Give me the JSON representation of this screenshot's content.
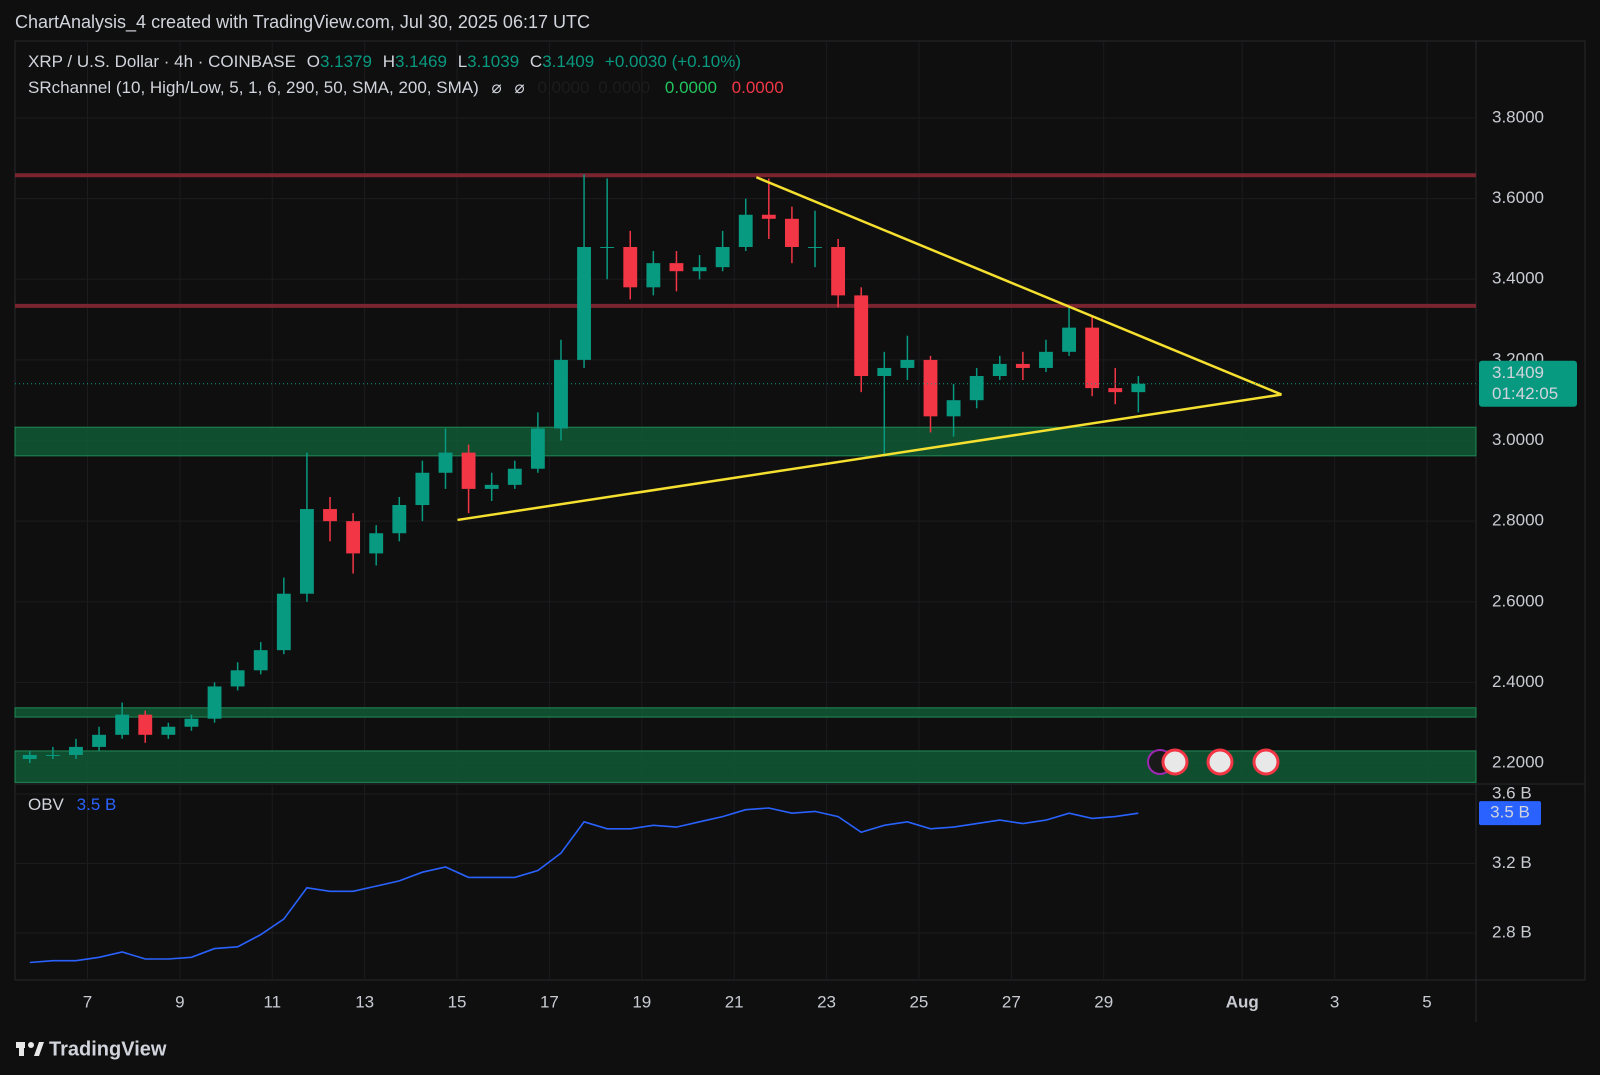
{
  "header": {
    "credit": "ChartAnalysis_4 created with TradingView.com, Jul 30, 2025 06:17 UTC",
    "brand": "TradingView"
  },
  "chart_data": {
    "type": "candlestick",
    "symbol": "XRP / U.S. Dollar · 4h · COINBASE",
    "ohlc": [
      {
        "label": "O",
        "value": "3.1379"
      },
      {
        "label": "H",
        "value": "3.1469"
      },
      {
        "label": "L",
        "value": "3.1039"
      },
      {
        "label": "C",
        "value": "3.1409"
      }
    ],
    "change": "+0.0030 (+0.10%)",
    "indicator": {
      "name": "SRchannel (10, High/Low, 5, 1, 6, 290, 50, SMA, 200, SMA)",
      "symbols": [
        "⌀",
        "⌀"
      ],
      "values": [
        "0.0000",
        "0.0000",
        "0.0000",
        "0.0000"
      ],
      "colors": [
        "#1c1c1c",
        "#1c1c1c",
        "#22c55e",
        "#f23645"
      ]
    },
    "up_color": "#089981",
    "down_color": "#f23645",
    "x": [
      5.75,
      6.25,
      6.75,
      7.25,
      7.75,
      8.25,
      8.75,
      9.25,
      9.75,
      10.25,
      10.75,
      11.25,
      11.75,
      12.25,
      12.75,
      13.25,
      13.75,
      14.25,
      14.75,
      15.25,
      15.75,
      16.25,
      16.75,
      17.25,
      17.75,
      18.25,
      18.75,
      19.25,
      19.75,
      20.25,
      20.75,
      21.25,
      21.75,
      22.25,
      22.75,
      23.25,
      23.75,
      24.25,
      24.75,
      25.25,
      25.75,
      26.25,
      26.75,
      27.25,
      27.75,
      28.25,
      28.75,
      29.25,
      29.75
    ],
    "open": [
      2.21,
      2.22,
      2.22,
      2.24,
      2.27,
      2.32,
      2.27,
      2.29,
      2.31,
      2.39,
      2.43,
      2.48,
      2.62,
      2.83,
      2.8,
      2.72,
      2.77,
      2.84,
      2.92,
      2.97,
      2.88,
      2.89,
      2.93,
      3.03,
      3.2,
      3.48,
      3.48,
      3.38,
      3.44,
      3.42,
      3.43,
      3.48,
      3.56,
      3.55,
      3.48,
      3.48,
      3.36,
      3.16,
      3.18,
      3.2,
      3.06,
      3.1,
      3.16,
      3.19,
      3.18,
      3.22,
      3.28,
      3.13,
      3.12
    ],
    "high": [
      2.23,
      2.24,
      2.26,
      2.29,
      2.35,
      2.33,
      2.3,
      2.32,
      2.4,
      2.45,
      2.5,
      2.66,
      2.97,
      2.86,
      2.82,
      2.79,
      2.86,
      2.95,
      3.03,
      2.99,
      2.92,
      2.95,
      3.07,
      3.25,
      3.66,
      3.65,
      3.52,
      3.47,
      3.47,
      3.46,
      3.52,
      3.6,
      3.65,
      3.58,
      3.57,
      3.5,
      3.38,
      3.22,
      3.26,
      3.21,
      3.14,
      3.18,
      3.21,
      3.22,
      3.25,
      3.33,
      3.31,
      3.18,
      3.16
    ],
    "low": [
      2.2,
      2.21,
      2.21,
      2.23,
      2.26,
      2.25,
      2.26,
      2.28,
      2.3,
      2.38,
      2.42,
      2.47,
      2.6,
      2.75,
      2.67,
      2.69,
      2.75,
      2.8,
      2.88,
      2.82,
      2.85,
      2.88,
      2.92,
      3.0,
      3.18,
      3.4,
      3.35,
      3.36,
      3.37,
      3.4,
      3.42,
      3.47,
      3.5,
      3.44,
      3.43,
      3.33,
      3.12,
      2.96,
      3.15,
      3.02,
      3.01,
      3.08,
      3.15,
      3.15,
      3.17,
      3.21,
      3.11,
      3.09,
      3.07
    ],
    "close": [
      2.22,
      2.22,
      2.24,
      2.27,
      2.32,
      2.27,
      2.29,
      2.31,
      2.39,
      2.43,
      2.48,
      2.62,
      2.83,
      2.8,
      2.72,
      2.77,
      2.84,
      2.92,
      2.97,
      2.88,
      2.89,
      2.93,
      3.03,
      3.2,
      3.48,
      3.48,
      3.38,
      3.44,
      3.42,
      3.43,
      3.48,
      3.56,
      3.55,
      3.48,
      3.48,
      3.36,
      3.16,
      3.18,
      3.2,
      3.06,
      3.1,
      3.16,
      3.19,
      3.18,
      3.22,
      3.28,
      3.13,
      3.12,
      3.1409
    ],
    "last_price": {
      "value": 3.1409,
      "label": "3.1409",
      "countdown": "01:42:05",
      "color": "#089981"
    },
    "resistance_lines": [
      3.658,
      3.334
    ],
    "resistance_color": "#7a2430",
    "support_zones": [
      {
        "low": 2.962,
        "high": 3.033
      },
      {
        "low": 2.314,
        "high": 2.337
      },
      {
        "low": 2.152,
        "high": 2.23
      }
    ],
    "zone_color": "#0f5a35",
    "trendlines": [
      {
        "x": [
          21.48,
          32.85
        ],
        "y": [
          3.653,
          3.114
        ]
      },
      {
        "x": [
          15.01,
          32.85
        ],
        "y": [
          2.803,
          3.114
        ]
      }
    ],
    "trendline_color": "#f5e030",
    "xlim": [
      5.43,
      37.06
    ],
    "xticks": [
      7,
      9,
      11,
      13,
      15,
      17,
      19,
      21,
      23,
      25,
      27,
      29,
      {
        "value": 32,
        "label": "Aug"
      },
      {
        "value": 34,
        "label": "3"
      },
      {
        "value": 36,
        "label": "5"
      }
    ],
    "ylim": [
      2.148,
      3.991
    ],
    "yticks": [
      {
        "value": 2.2,
        "label": "2.2000"
      },
      {
        "value": 2.4,
        "label": "2.4000"
      },
      {
        "value": 2.6,
        "label": "2.6000"
      },
      {
        "value": 2.8,
        "label": "2.8000"
      },
      {
        "value": 3.0,
        "label": "3.0000"
      },
      {
        "value": 3.2,
        "label": "3.2000"
      },
      {
        "value": 3.4,
        "label": "3.4000"
      },
      {
        "value": 3.6,
        "label": "3.6000"
      },
      {
        "value": 3.8,
        "label": "3.8000"
      }
    ],
    "grid": true,
    "obv": {
      "name": "OBV",
      "color": "#2962ff",
      "value_label": "3.5 B",
      "values": [
        2.63,
        2.64,
        2.64,
        2.66,
        2.69,
        2.65,
        2.65,
        2.66,
        2.71,
        2.72,
        2.79,
        2.88,
        3.06,
        3.04,
        3.04,
        3.07,
        3.1,
        3.15,
        3.18,
        3.12,
        3.12,
        3.12,
        3.16,
        3.26,
        3.44,
        3.4,
        3.4,
        3.42,
        3.41,
        3.44,
        3.47,
        3.51,
        3.52,
        3.49,
        3.5,
        3.47,
        3.38,
        3.42,
        3.44,
        3.4,
        3.41,
        3.43,
        3.45,
        3.43,
        3.45,
        3.49,
        3.46,
        3.47,
        3.49
      ],
      "ylim": [
        2.529,
        3.658
      ],
      "yticks": [
        {
          "value": 2.8,
          "label": "2.8 B"
        },
        {
          "value": 3.2,
          "label": "3.2 B"
        },
        {
          "value": 3.6,
          "label": "3.6 B"
        }
      ]
    }
  }
}
